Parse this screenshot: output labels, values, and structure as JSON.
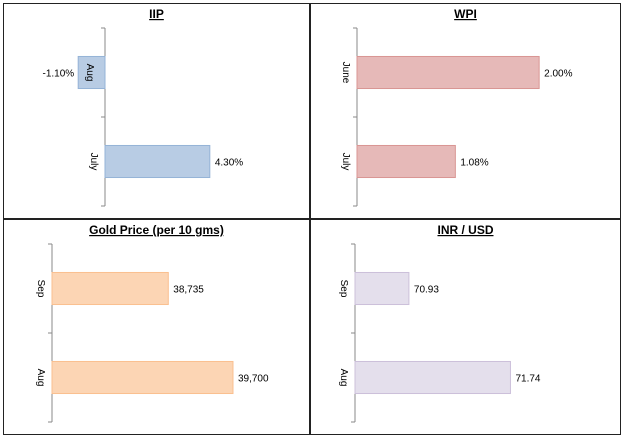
{
  "chart_data": [
    {
      "type": "bar",
      "orientation": "horizontal",
      "title": "IIP",
      "categories": [
        "Aug",
        "July"
      ],
      "values": [
        -1.1,
        4.3
      ],
      "value_labels": [
        "-1.10%",
        "4.30%"
      ],
      "color": "#b8cce4",
      "border": "#95b3d7",
      "xlim": [
        -2,
        8
      ]
    },
    {
      "type": "bar",
      "orientation": "horizontal",
      "title": "WPI",
      "categories": [
        "June",
        "July"
      ],
      "values": [
        2.0,
        1.08
      ],
      "value_labels": [
        "2.00%",
        "1.08%"
      ],
      "color": "#e6b9b8",
      "border": "#d99694",
      "xlim": [
        0,
        2.8
      ]
    },
    {
      "type": "bar",
      "orientation": "horizontal",
      "title": "Gold Price (per 10 gms)",
      "categories": [
        "Sep",
        "Aug"
      ],
      "values": [
        38735,
        39700
      ],
      "value_labels": [
        "38,735",
        "39,700"
      ],
      "color": "#fcd5b4",
      "border": "#fabf8f",
      "xlim": [
        37000,
        40700
      ]
    },
    {
      "type": "bar",
      "orientation": "horizontal",
      "title": "INR / USD",
      "categories": [
        "Sep",
        "Aug"
      ],
      "values": [
        70.93,
        71.74
      ],
      "value_labels": [
        "70.93",
        "71.74"
      ],
      "color": "#e4dfec",
      "border": "#ccc0da",
      "xlim": [
        70.5,
        72.55
      ]
    }
  ]
}
